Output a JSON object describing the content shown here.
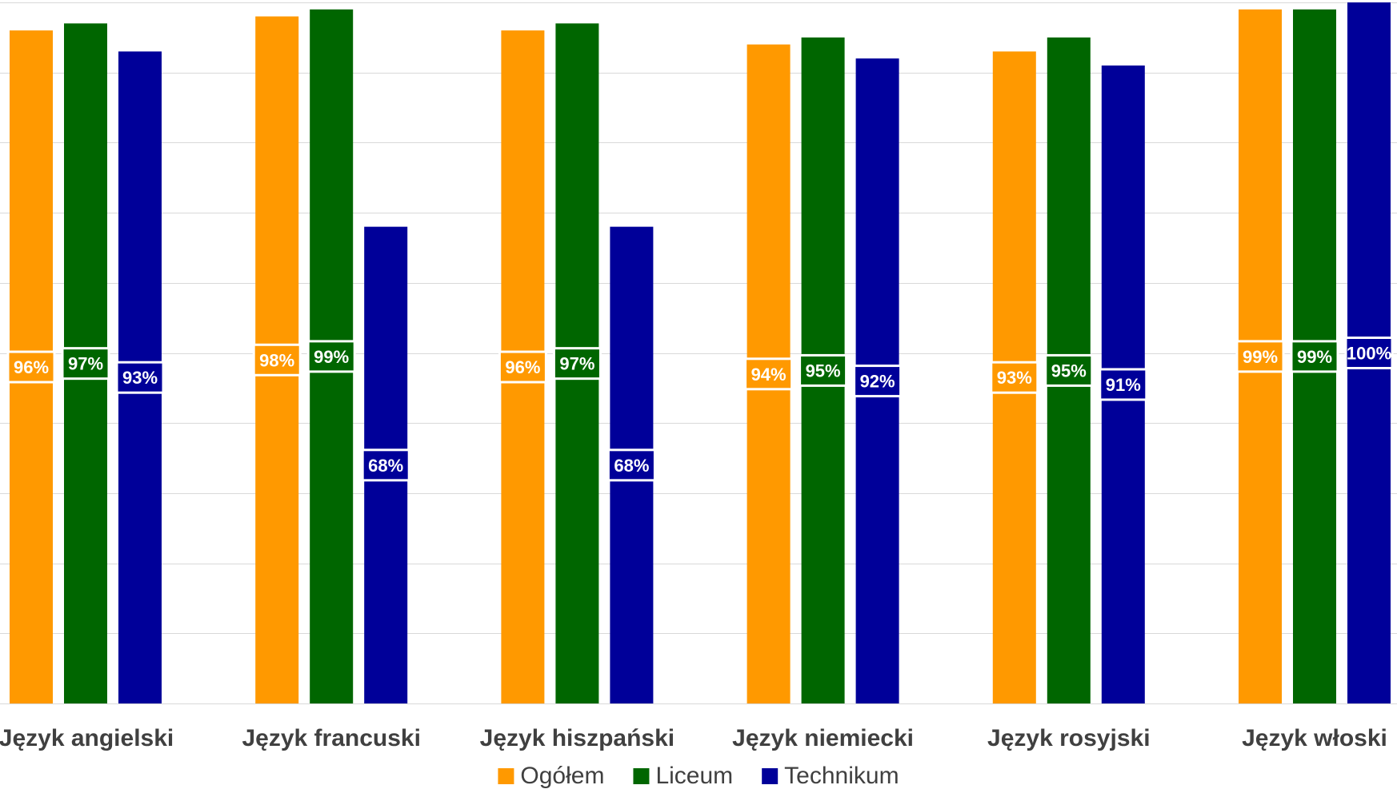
{
  "chart_data": {
    "type": "bar",
    "categories": [
      "Język angielski",
      "Język francuski",
      "Język hiszpański",
      "Język niemiecki",
      "Język rosyjski",
      "Język włoski"
    ],
    "series": [
      {
        "name": "Ogółem",
        "color": "#FF9900",
        "values": [
          96,
          98,
          96,
          94,
          93,
          99
        ]
      },
      {
        "name": "Liceum",
        "color": "#006600",
        "values": [
          97,
          99,
          97,
          95,
          95,
          99
        ]
      },
      {
        "name": "Technikum",
        "color": "#000099",
        "values": [
          93,
          68,
          68,
          92,
          91,
          100
        ]
      }
    ],
    "value_suffix": "%",
    "ylim": [
      0,
      100
    ],
    "grid": true,
    "legend_position": "bottom"
  }
}
